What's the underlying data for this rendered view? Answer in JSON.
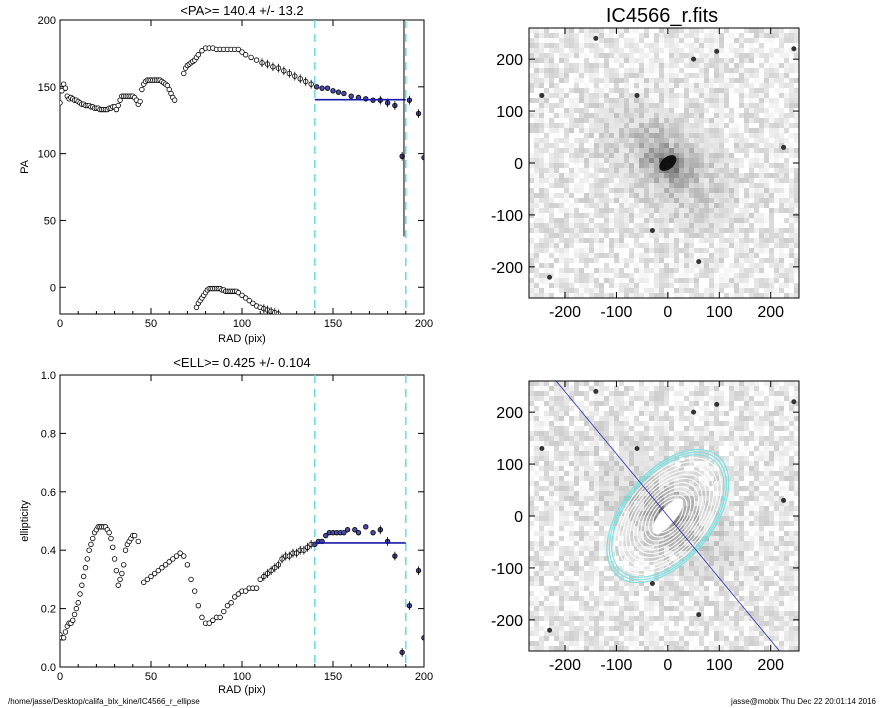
{
  "chart_data": [
    {
      "type": "scatter",
      "title": "<PA>= 140.4 +/-  13.2",
      "xlabel": "RAD (pix)",
      "ylabel": "PA",
      "xlim": [
        0,
        200
      ],
      "ylim": [
        -20,
        200
      ],
      "xticks": [
        "0",
        "50",
        "100",
        "150",
        "200"
      ],
      "yticks": [
        "0",
        "50",
        "100",
        "150",
        "200"
      ],
      "series": [
        {
          "values": [
            [
              0,
              138
            ],
            [
              1,
              147
            ],
            [
              2,
              152
            ],
            [
              3,
              149
            ],
            [
              4,
              143
            ],
            [
              5,
              141
            ],
            [
              6,
              142
            ],
            [
              7,
              141
            ],
            [
              8,
              140
            ],
            [
              9,
              140
            ],
            [
              10,
              139
            ],
            [
              11,
              138
            ],
            [
              12,
              137
            ],
            [
              13,
              137
            ],
            [
              14,
              136
            ],
            [
              15,
              136
            ],
            [
              16,
              136
            ],
            [
              17,
              135
            ],
            [
              18,
              135
            ],
            [
              19,
              134
            ],
            [
              20,
              134
            ],
            [
              21,
              134
            ],
            [
              22,
              133
            ],
            [
              23,
              133
            ],
            [
              24,
              133
            ],
            [
              25,
              133
            ],
            [
              26,
              133
            ],
            [
              27,
              134
            ],
            [
              28,
              134
            ],
            [
              29,
              135
            ],
            [
              30,
              135
            ],
            [
              31,
              133
            ],
            [
              32,
              136
            ],
            [
              33,
              140
            ],
            [
              34,
              143
            ],
            [
              35,
              143
            ],
            [
              36,
              143
            ],
            [
              37,
              143
            ],
            [
              38,
              143
            ],
            [
              39,
              143
            ],
            [
              40,
              143
            ],
            [
              41,
              142
            ],
            [
              42,
              140
            ],
            [
              43,
              137
            ],
            [
              44,
              139
            ],
            [
              45,
              148
            ],
            [
              46,
              152
            ],
            [
              47,
              154
            ],
            [
              48,
              155
            ],
            [
              49,
              155
            ],
            [
              50,
              155
            ],
            [
              51,
              155
            ],
            [
              52,
              155
            ],
            [
              53,
              155
            ],
            [
              54,
              155
            ],
            [
              55,
              155
            ],
            [
              56,
              154
            ],
            [
              57,
              153
            ],
            [
              58,
              152
            ],
            [
              59,
              151
            ],
            [
              60,
              148
            ],
            [
              61,
              145
            ],
            [
              62,
              142
            ],
            [
              63,
              140
            ],
            [
              68,
              160
            ],
            [
              69,
              164
            ],
            [
              70,
              166
            ],
            [
              71,
              167
            ],
            [
              72,
              168
            ],
            [
              73,
              169
            ],
            [
              74,
              170
            ],
            [
              75,
              172
            ],
            [
              76,
              174
            ],
            [
              78,
              177
            ],
            [
              80,
              179
            ],
            [
              82,
              179
            ],
            [
              84,
              179
            ],
            [
              86,
              178
            ],
            [
              88,
              178
            ],
            [
              90,
              178
            ],
            [
              92,
              178
            ],
            [
              94,
              178
            ],
            [
              96,
              178
            ],
            [
              98,
              178
            ],
            [
              100,
              176
            ],
            [
              102,
              174
            ],
            [
              105,
              172
            ],
            [
              108,
              170
            ],
            [
              111,
              168
            ],
            [
              114,
              167
            ],
            [
              117,
              165
            ],
            [
              120,
              164
            ],
            [
              123,
              162
            ],
            [
              126,
              160
            ],
            [
              129,
              158
            ],
            [
              132,
              156
            ],
            [
              135,
              154
            ],
            [
              138,
              152
            ],
            [
              141,
              150
            ],
            [
              144,
              149
            ],
            [
              147,
              149
            ],
            [
              150,
              147
            ],
            [
              153,
              146
            ],
            [
              156,
              145
            ],
            [
              160,
              143
            ],
            [
              164,
              142
            ],
            [
              168,
              141
            ],
            [
              172,
              140
            ],
            [
              176,
              140
            ],
            [
              180,
              138
            ],
            [
              184,
              136
            ]
          ],
          "errors": []
        },
        {
          "name": "",
          "values": [
            [
              75,
              -15
            ],
            [
              76,
              -12
            ],
            [
              77,
              -10
            ],
            [
              78,
              -8
            ],
            [
              79,
              -6
            ],
            [
              80,
              -4
            ],
            [
              81,
              -2
            ],
            [
              82,
              -1
            ],
            [
              83,
              -1
            ],
            [
              84,
              -1
            ],
            [
              85,
              -1
            ],
            [
              86,
              -1
            ],
            [
              87,
              -1
            ],
            [
              88,
              -1
            ],
            [
              89,
              -2
            ],
            [
              90,
              -2
            ],
            [
              91,
              -3
            ],
            [
              92,
              -3
            ],
            [
              93,
              -3
            ],
            [
              94,
              -3
            ],
            [
              95,
              -3
            ],
            [
              96,
              -3
            ],
            [
              97,
              -3
            ],
            [
              98,
              -4
            ],
            [
              100,
              -6
            ],
            [
              102,
              -8
            ],
            [
              104,
              -10
            ],
            [
              106,
              -12
            ],
            [
              108,
              -14
            ],
            [
              110,
              -15
            ],
            [
              112,
              -16
            ],
            [
              114,
              -17
            ],
            [
              116,
              -18
            ],
            [
              118,
              -19
            ],
            [
              120,
              -20
            ]
          ]
        },
        {
          "name": "",
          "values": [
            [
              188,
              98
            ],
            [
              192,
              140
            ],
            [
              197,
              130
            ],
            [
              200,
              97
            ]
          ]
        }
      ],
      "fit_line": {
        "x": [
          140,
          190
        ],
        "y": 140.4
      },
      "dashed_lines_x": [
        140,
        190
      ]
    },
    {
      "type": "scatter",
      "title": "<ELL>= 0.425 +/-  0.104",
      "xlabel": "RAD (pix)",
      "ylabel": "ellipticity",
      "xlim": [
        0,
        200
      ],
      "ylim": [
        0.0,
        1.0
      ],
      "xticks": [
        "0",
        "50",
        "100",
        "150",
        "200"
      ],
      "yticks": [
        "0.0",
        "0.2",
        "0.4",
        "0.6",
        "0.8",
        "1.0"
      ],
      "series": [
        {
          "values": [
            [
              0,
              0.11
            ],
            [
              1,
              0.1
            ],
            [
              2,
              0.1
            ],
            [
              3,
              0.12
            ],
            [
              4,
              0.14
            ],
            [
              5,
              0.15
            ],
            [
              6,
              0.15
            ],
            [
              7,
              0.16
            ],
            [
              8,
              0.18
            ],
            [
              9,
              0.2
            ],
            [
              10,
              0.22
            ],
            [
              11,
              0.25
            ],
            [
              12,
              0.28
            ],
            [
              13,
              0.31
            ],
            [
              14,
              0.34
            ],
            [
              15,
              0.37
            ],
            [
              16,
              0.4
            ],
            [
              17,
              0.42
            ],
            [
              18,
              0.44
            ],
            [
              19,
              0.46
            ],
            [
              20,
              0.47
            ],
            [
              21,
              0.48
            ],
            [
              22,
              0.48
            ],
            [
              23,
              0.48
            ],
            [
              24,
              0.48
            ],
            [
              25,
              0.48
            ],
            [
              26,
              0.47
            ],
            [
              27,
              0.46
            ],
            [
              28,
              0.44
            ],
            [
              29,
              0.41
            ],
            [
              30,
              0.37
            ],
            [
              31,
              0.33
            ],
            [
              32,
              0.28
            ],
            [
              33,
              0.3
            ],
            [
              34,
              0.32
            ],
            [
              35,
              0.35
            ],
            [
              36,
              0.4
            ],
            [
              37,
              0.42
            ],
            [
              38,
              0.43
            ],
            [
              39,
              0.44
            ],
            [
              40,
              0.45
            ],
            [
              41,
              0.45
            ],
            [
              43,
              0.43
            ],
            [
              46,
              0.29
            ],
            [
              48,
              0.3
            ],
            [
              50,
              0.31
            ],
            [
              52,
              0.32
            ],
            [
              54,
              0.33
            ],
            [
              56,
              0.34
            ],
            [
              58,
              0.35
            ],
            [
              60,
              0.36
            ],
            [
              62,
              0.37
            ],
            [
              64,
              0.38
            ],
            [
              66,
              0.39
            ],
            [
              68,
              0.38
            ],
            [
              70,
              0.35
            ],
            [
              72,
              0.3
            ],
            [
              74,
              0.26
            ],
            [
              76,
              0.21
            ],
            [
              78,
              0.17
            ],
            [
              80,
              0.15
            ],
            [
              82,
              0.15
            ],
            [
              84,
              0.16
            ],
            [
              86,
              0.17
            ],
            [
              88,
              0.17
            ],
            [
              90,
              0.19
            ],
            [
              92,
              0.21
            ],
            [
              94,
              0.22
            ],
            [
              96,
              0.24
            ],
            [
              98,
              0.25
            ],
            [
              100,
              0.26
            ],
            [
              102,
              0.26
            ],
            [
              104,
              0.27
            ],
            [
              106,
              0.27
            ],
            [
              108,
              0.27
            ],
            [
              110,
              0.3
            ],
            [
              112,
              0.31
            ],
            [
              114,
              0.32
            ],
            [
              116,
              0.33
            ],
            [
              118,
              0.34
            ],
            [
              120,
              0.35
            ],
            [
              122,
              0.37
            ],
            [
              124,
              0.38
            ],
            [
              126,
              0.38
            ],
            [
              128,
              0.39
            ],
            [
              130,
              0.39
            ],
            [
              132,
              0.4
            ],
            [
              134,
              0.4
            ],
            [
              136,
              0.41
            ],
            [
              138,
              0.42
            ],
            [
              140,
              0.42
            ],
            [
              142,
              0.43
            ],
            [
              144,
              0.43
            ],
            [
              146,
              0.45
            ],
            [
              148,
              0.46
            ],
            [
              150,
              0.46
            ],
            [
              152,
              0.46
            ],
            [
              154,
              0.46
            ],
            [
              156,
              0.46
            ],
            [
              158,
              0.47
            ],
            [
              162,
              0.47
            ],
            [
              164,
              0.46
            ],
            [
              168,
              0.48
            ],
            [
              172,
              0.46
            ],
            [
              176,
              0.47
            ],
            [
              180,
              0.43
            ],
            [
              184,
              0.38
            ]
          ],
          "errors": []
        },
        {
          "name": "",
          "values": [
            [
              188,
              0.05
            ],
            [
              192,
              0.21
            ],
            [
              197,
              0.33
            ],
            [
              200,
              0.1
            ]
          ]
        }
      ],
      "fit_line": {
        "x": [
          140,
          190
        ],
        "y": 0.425
      },
      "dashed_lines_x": [
        140,
        190
      ]
    },
    {
      "type": "image",
      "title": "IC4566_r.fits",
      "xticks": [
        "-200",
        "-100",
        "0",
        "100",
        "200"
      ],
      "yticks": [
        "200",
        "100",
        "0",
        "-100",
        "-200"
      ],
      "xlim": [
        -270,
        255
      ],
      "ylim": [
        -260,
        260
      ]
    },
    {
      "type": "image",
      "title": "",
      "xticks": [
        "-200",
        "-100",
        "0",
        "100",
        "200"
      ],
      "yticks": [
        "200",
        "100",
        "0",
        "-100",
        "-200"
      ],
      "xlim": [
        -270,
        255
      ],
      "ylim": [
        -260,
        260
      ],
      "pa_line_deg": 140.4,
      "ellipse_colors": [
        "#ffffff",
        "#7fe0e0"
      ]
    }
  ],
  "footer": {
    "left": "/home/jasse/Desktop/califa_blx_kine/IC4566_r_ellipse",
    "right": "jasse@mobix  Thu Dec 22 20:01:14 2016"
  },
  "colors": {
    "dash": "#66dddd",
    "fit": "#1a1aa8",
    "outer_pts": "#4a4aa8"
  }
}
